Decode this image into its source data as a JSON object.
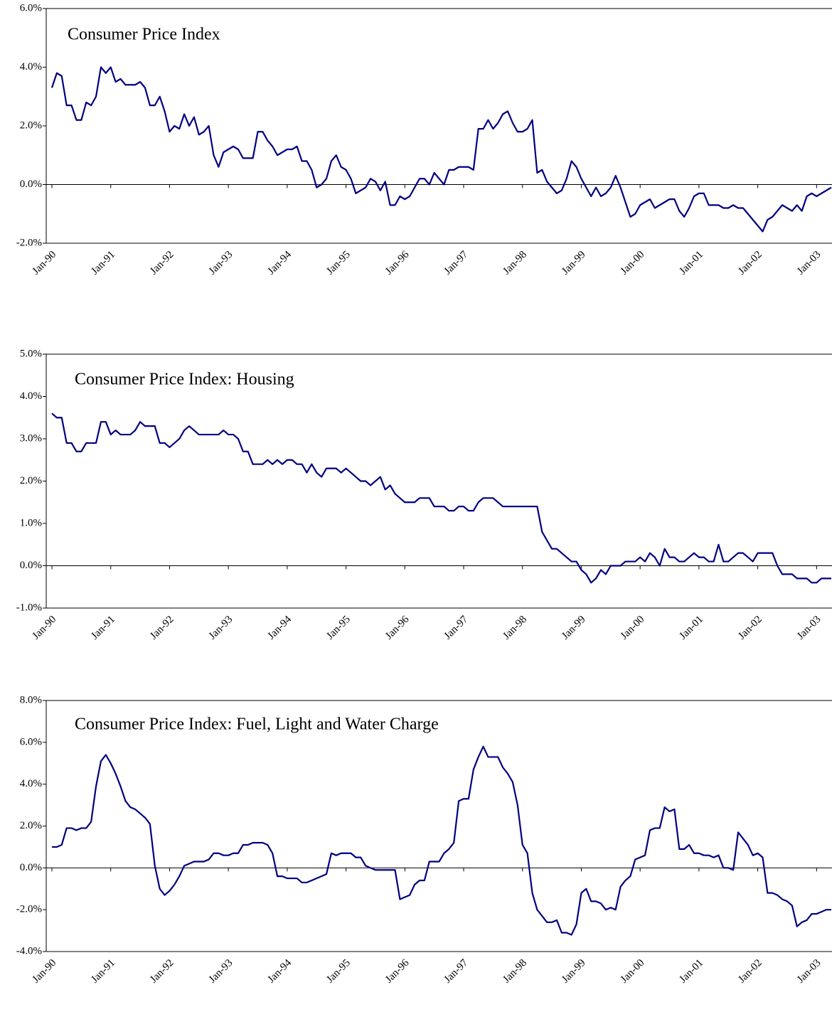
{
  "chart_data": [
    {
      "type": "line",
      "title": "Consumer Price Index",
      "color": "#000080",
      "ylim": [
        -2,
        6
      ],
      "yticks": [
        {
          "value": -2,
          "label": "-2.0%"
        },
        {
          "value": 0,
          "label": "0.0%"
        },
        {
          "value": 2,
          "label": "2.0%"
        },
        {
          "value": 4,
          "label": "4.0%"
        },
        {
          "value": 6,
          "label": "6.0%"
        }
      ],
      "categories": [
        "Jan-90",
        null,
        null,
        null,
        null,
        null,
        null,
        null,
        null,
        null,
        null,
        null,
        "Jan-91",
        null,
        null,
        null,
        null,
        null,
        null,
        null,
        null,
        null,
        null,
        null,
        "Jan-92",
        null,
        null,
        null,
        null,
        null,
        null,
        null,
        null,
        null,
        null,
        null,
        "Jan-93",
        null,
        null,
        null,
        null,
        null,
        null,
        null,
        null,
        null,
        null,
        null,
        "Jan-94",
        null,
        null,
        null,
        null,
        null,
        null,
        null,
        null,
        null,
        null,
        null,
        "Jan-95",
        null,
        null,
        null,
        null,
        null,
        null,
        null,
        null,
        null,
        null,
        null,
        "Jan-96",
        null,
        null,
        null,
        null,
        null,
        null,
        null,
        null,
        null,
        null,
        null,
        "Jan-97",
        null,
        null,
        null,
        null,
        null,
        null,
        null,
        null,
        null,
        null,
        null,
        "Jan-98",
        null,
        null,
        null,
        null,
        null,
        null,
        null,
        null,
        null,
        null,
        null,
        "Jan-99",
        null,
        null,
        null,
        null,
        null,
        null,
        null,
        null,
        null,
        null,
        null,
        "Jan-00",
        null,
        null,
        null,
        null,
        null,
        null,
        null,
        null,
        null,
        null,
        null,
        "Jan-01",
        null,
        null,
        null,
        null,
        null,
        null,
        null,
        null,
        null,
        null,
        null,
        "Jan-02",
        null,
        null,
        null,
        null,
        null,
        null,
        null,
        null,
        null,
        null,
        null,
        "Jan-03",
        null,
        null,
        null
      ],
      "values": [
        3.3,
        3.8,
        3.7,
        2.7,
        2.7,
        2.2,
        2.2,
        2.8,
        2.7,
        3.0,
        4.0,
        3.8,
        4.0,
        3.5,
        3.6,
        3.4,
        3.4,
        3.4,
        3.5,
        3.3,
        2.7,
        2.7,
        3.0,
        2.5,
        1.8,
        2.0,
        1.9,
        2.4,
        2.0,
        2.3,
        1.7,
        1.8,
        2.0,
        1.0,
        0.6,
        1.1,
        1.2,
        1.3,
        1.2,
        0.9,
        0.9,
        0.9,
        1.8,
        1.8,
        1.5,
        1.3,
        1.0,
        1.1,
        1.2,
        1.2,
        1.3,
        0.8,
        0.8,
        0.5,
        -0.1,
        0.0,
        0.2,
        0.8,
        1.0,
        0.6,
        0.5,
        0.2,
        -0.3,
        -0.2,
        -0.1,
        0.2,
        0.1,
        -0.2,
        0.1,
        -0.7,
        -0.7,
        -0.4,
        -0.5,
        -0.4,
        -0.1,
        0.2,
        0.2,
        0.0,
        0.4,
        0.2,
        0.0,
        0.5,
        0.5,
        0.6,
        0.6,
        0.6,
        0.5,
        1.9,
        1.9,
        2.2,
        1.9,
        2.1,
        2.4,
        2.5,
        2.1,
        1.8,
        1.8,
        1.9,
        2.2,
        0.4,
        0.5,
        0.1,
        -0.1,
        -0.3,
        -0.2,
        0.2,
        0.8,
        0.6,
        0.2,
        -0.1,
        -0.4,
        -0.1,
        -0.4,
        -0.3,
        -0.1,
        0.3,
        -0.1,
        -0.6,
        -1.1,
        -1.0,
        -0.7,
        -0.6,
        -0.5,
        -0.8,
        -0.7,
        -0.6,
        -0.5,
        -0.5,
        -0.9,
        -1.1,
        -0.8,
        -0.4,
        -0.3,
        -0.3,
        -0.7,
        -0.7,
        -0.7,
        -0.8,
        -0.8,
        -0.7,
        -0.8,
        -0.8,
        -1.0,
        -1.2,
        -1.4,
        -1.6,
        -1.2,
        -1.1,
        -0.9,
        -0.7,
        -0.8,
        -0.9,
        -0.7,
        -0.9,
        -0.4,
        -0.3,
        -0.4,
        -0.3,
        -0.2,
        -0.1
      ]
    },
    {
      "type": "line",
      "title": "Consumer Price Index: Housing",
      "color": "#000080",
      "ylim": [
        -1,
        5
      ],
      "yticks": [
        {
          "value": -1,
          "label": "-1.0%"
        },
        {
          "value": 0,
          "label": "0.0%"
        },
        {
          "value": 1,
          "label": "1.0%"
        },
        {
          "value": 2,
          "label": "2.0%"
        },
        {
          "value": 3,
          "label": "3.0%"
        },
        {
          "value": 4,
          "label": "4.0%"
        },
        {
          "value": 5,
          "label": "5.0%"
        }
      ],
      "categories": [
        "Jan-90",
        null,
        null,
        null,
        null,
        null,
        null,
        null,
        null,
        null,
        null,
        null,
        "Jan-91",
        null,
        null,
        null,
        null,
        null,
        null,
        null,
        null,
        null,
        null,
        null,
        "Jan-92",
        null,
        null,
        null,
        null,
        null,
        null,
        null,
        null,
        null,
        null,
        null,
        "Jan-93",
        null,
        null,
        null,
        null,
        null,
        null,
        null,
        null,
        null,
        null,
        null,
        "Jan-94",
        null,
        null,
        null,
        null,
        null,
        null,
        null,
        null,
        null,
        null,
        null,
        "Jan-95",
        null,
        null,
        null,
        null,
        null,
        null,
        null,
        null,
        null,
        null,
        null,
        "Jan-96",
        null,
        null,
        null,
        null,
        null,
        null,
        null,
        null,
        null,
        null,
        null,
        "Jan-97",
        null,
        null,
        null,
        null,
        null,
        null,
        null,
        null,
        null,
        null,
        null,
        "Jan-98",
        null,
        null,
        null,
        null,
        null,
        null,
        null,
        null,
        null,
        null,
        null,
        "Jan-99",
        null,
        null,
        null,
        null,
        null,
        null,
        null,
        null,
        null,
        null,
        null,
        "Jan-00",
        null,
        null,
        null,
        null,
        null,
        null,
        null,
        null,
        null,
        null,
        null,
        "Jan-01",
        null,
        null,
        null,
        null,
        null,
        null,
        null,
        null,
        null,
        null,
        null,
        "Jan-02",
        null,
        null,
        null,
        null,
        null,
        null,
        null,
        null,
        null,
        null,
        null,
        "Jan-03",
        null,
        null,
        null
      ],
      "values": [
        3.6,
        3.5,
        3.5,
        2.9,
        2.9,
        2.7,
        2.7,
        2.9,
        2.9,
        2.9,
        3.4,
        3.4,
        3.1,
        3.2,
        3.1,
        3.1,
        3.1,
        3.2,
        3.4,
        3.3,
        3.3,
        3.3,
        2.9,
        2.9,
        2.8,
        2.9,
        3.0,
        3.2,
        3.3,
        3.2,
        3.1,
        3.1,
        3.1,
        3.1,
        3.1,
        3.2,
        3.1,
        3.1,
        3.0,
        2.7,
        2.7,
        2.4,
        2.4,
        2.4,
        2.5,
        2.4,
        2.5,
        2.4,
        2.5,
        2.5,
        2.4,
        2.4,
        2.2,
        2.4,
        2.2,
        2.1,
        2.3,
        2.3,
        2.3,
        2.2,
        2.3,
        2.2,
        2.1,
        2.0,
        2.0,
        1.9,
        2.0,
        2.1,
        1.8,
        1.9,
        1.7,
        1.6,
        1.5,
        1.5,
        1.5,
        1.6,
        1.6,
        1.6,
        1.4,
        1.4,
        1.4,
        1.3,
        1.3,
        1.4,
        1.4,
        1.3,
        1.3,
        1.5,
        1.6,
        1.6,
        1.6,
        1.5,
        1.4,
        1.4,
        1.4,
        1.4,
        1.4,
        1.4,
        1.4,
        1.4,
        0.8,
        0.6,
        0.4,
        0.4,
        0.3,
        0.2,
        0.1,
        0.1,
        -0.1,
        -0.2,
        -0.4,
        -0.3,
        -0.1,
        -0.2,
        0.0,
        0.0,
        0.0,
        0.1,
        0.1,
        0.1,
        0.2,
        0.1,
        0.3,
        0.2,
        0.0,
        0.4,
        0.2,
        0.2,
        0.1,
        0.1,
        0.2,
        0.3,
        0.2,
        0.2,
        0.1,
        0.1,
        0.5,
        0.1,
        0.1,
        0.2,
        0.3,
        0.3,
        0.2,
        0.1,
        0.3,
        0.3,
        0.3,
        0.3,
        0.0,
        -0.2,
        -0.2,
        -0.2,
        -0.3,
        -0.3,
        -0.3,
        -0.4,
        -0.4,
        -0.3,
        -0.3,
        -0.3
      ]
    },
    {
      "type": "line",
      "title": "Consumer Price Index: Fuel, Light and Water Charge",
      "color": "#000080",
      "ylim": [
        -4,
        8
      ],
      "yticks": [
        {
          "value": -4,
          "label": "-4.0%"
        },
        {
          "value": -2,
          "label": "-2.0%"
        },
        {
          "value": 0,
          "label": "0.0%"
        },
        {
          "value": 2,
          "label": "2.0%"
        },
        {
          "value": 4,
          "label": "4.0%"
        },
        {
          "value": 6,
          "label": "6.0%"
        },
        {
          "value": 8,
          "label": "8.0%"
        }
      ],
      "categories": [
        "Jan-90",
        null,
        null,
        null,
        null,
        null,
        null,
        null,
        null,
        null,
        null,
        null,
        "Jan-91",
        null,
        null,
        null,
        null,
        null,
        null,
        null,
        null,
        null,
        null,
        null,
        "Jan-92",
        null,
        null,
        null,
        null,
        null,
        null,
        null,
        null,
        null,
        null,
        null,
        "Jan-93",
        null,
        null,
        null,
        null,
        null,
        null,
        null,
        null,
        null,
        null,
        null,
        "Jan-94",
        null,
        null,
        null,
        null,
        null,
        null,
        null,
        null,
        null,
        null,
        null,
        "Jan-95",
        null,
        null,
        null,
        null,
        null,
        null,
        null,
        null,
        null,
        null,
        null,
        "Jan-96",
        null,
        null,
        null,
        null,
        null,
        null,
        null,
        null,
        null,
        null,
        null,
        "Jan-97",
        null,
        null,
        null,
        null,
        null,
        null,
        null,
        null,
        null,
        null,
        null,
        "Jan-98",
        null,
        null,
        null,
        null,
        null,
        null,
        null,
        null,
        null,
        null,
        null,
        "Jan-99",
        null,
        null,
        null,
        null,
        null,
        null,
        null,
        null,
        null,
        null,
        null,
        "Jan-00",
        null,
        null,
        null,
        null,
        null,
        null,
        null,
        null,
        null,
        null,
        null,
        "Jan-01",
        null,
        null,
        null,
        null,
        null,
        null,
        null,
        null,
        null,
        null,
        null,
        "Jan-02",
        null,
        null,
        null,
        null,
        null,
        null,
        null,
        null,
        null,
        null,
        null,
        "Jan-03",
        null,
        null,
        null
      ],
      "values": [
        1.0,
        1.0,
        1.1,
        1.9,
        1.9,
        1.8,
        1.9,
        1.9,
        2.2,
        3.9,
        5.1,
        5.4,
        5.0,
        4.5,
        3.9,
        3.2,
        2.9,
        2.8,
        2.6,
        2.4,
        2.1,
        0.1,
        -1.0,
        -1.3,
        -1.1,
        -0.8,
        -0.4,
        0.1,
        0.2,
        0.3,
        0.3,
        0.3,
        0.4,
        0.7,
        0.7,
        0.6,
        0.6,
        0.7,
        0.7,
        1.1,
        1.1,
        1.2,
        1.2,
        1.2,
        1.1,
        0.7,
        -0.4,
        -0.4,
        -0.5,
        -0.5,
        -0.5,
        -0.7,
        -0.7,
        -0.6,
        -0.5,
        -0.4,
        -0.3,
        0.7,
        0.6,
        0.7,
        0.7,
        0.7,
        0.5,
        0.5,
        0.1,
        0.0,
        -0.1,
        -0.1,
        -0.1,
        -0.1,
        -0.1,
        -1.5,
        -1.4,
        -1.3,
        -0.8,
        -0.6,
        -0.6,
        0.3,
        0.3,
        0.3,
        0.7,
        0.9,
        1.2,
        3.2,
        3.3,
        3.3,
        4.7,
        5.3,
        5.8,
        5.3,
        5.3,
        5.3,
        4.8,
        4.5,
        4.1,
        3.0,
        1.1,
        0.7,
        -1.2,
        -2.0,
        -2.3,
        -2.6,
        -2.6,
        -2.5,
        -3.1,
        -3.1,
        -3.2,
        -2.7,
        -1.2,
        -1.0,
        -1.6,
        -1.6,
        -1.7,
        -2.0,
        -1.9,
        -2.0,
        -0.9,
        -0.6,
        -0.4,
        0.4,
        0.5,
        0.6,
        1.8,
        1.9,
        1.9,
        2.9,
        2.7,
        2.8,
        0.9,
        0.9,
        1.1,
        0.7,
        0.7,
        0.6,
        0.6,
        0.5,
        0.6,
        0.0,
        0.0,
        -0.1,
        1.7,
        1.4,
        1.1,
        0.6,
        0.7,
        0.5,
        -1.2,
        -1.2,
        -1.3,
        -1.5,
        -1.6,
        -1.8,
        -2.8,
        -2.6,
        -2.5,
        -2.2,
        -2.2,
        -2.1,
        -2.0,
        -2.0
      ]
    }
  ]
}
